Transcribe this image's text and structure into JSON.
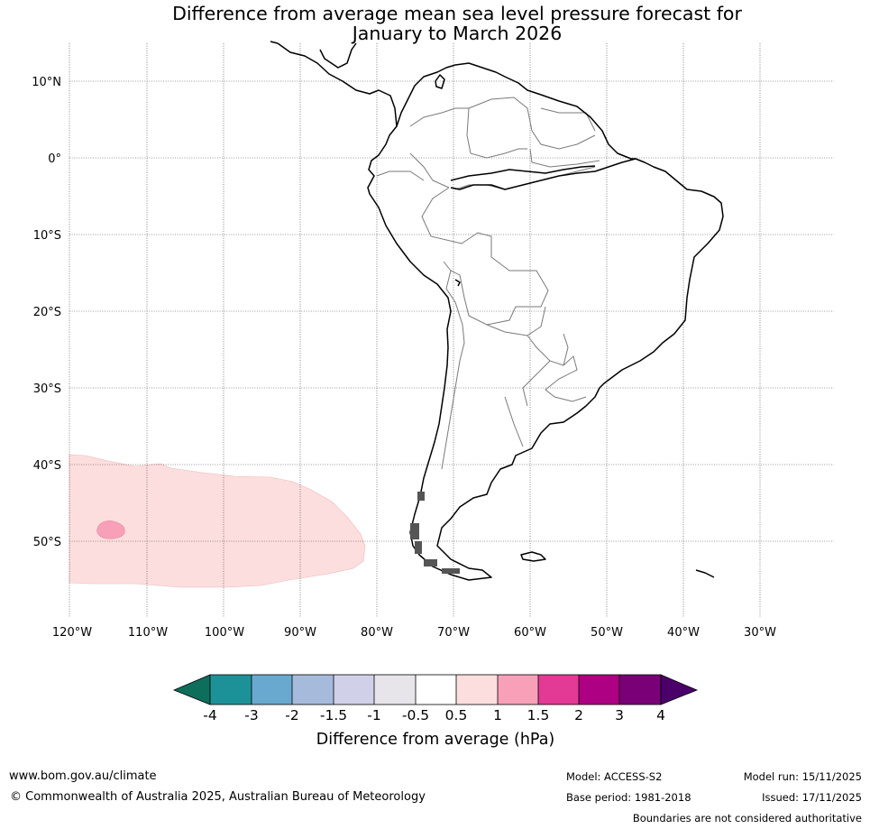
{
  "title": {
    "line1": "Difference from average mean sea level pressure forecast for",
    "line2": "January to March 2026"
  },
  "map": {
    "lat_labels": [
      "10°N",
      "0°",
      "10°S",
      "20°S",
      "30°S",
      "40°S",
      "50°S"
    ],
    "lon_labels": [
      "120°W",
      "110°W",
      "100°W",
      "90°W",
      "80°W",
      "70°W",
      "60°W",
      "50°W",
      "40°W",
      "30°W"
    ],
    "anomaly_regions": [
      {
        "category": "0.5 to 1 hPa",
        "color": "#fddede",
        "location": "southeast Pacific"
      },
      {
        "category": "1 to 1.5 hPa",
        "color": "#f8a0b8",
        "location": "southeast Pacific"
      }
    ]
  },
  "legend": {
    "ticks": [
      "-4",
      "-3",
      "-2",
      "-1.5",
      "-1",
      "-0.5",
      "0.5",
      "1",
      "1.5",
      "2",
      "3",
      "4"
    ],
    "colors": [
      "#0d6e5c",
      "#1d9198",
      "#6aa9cf",
      "#a6bbdc",
      "#d0d0e8",
      "#e7e5ea",
      "#ffffff",
      "#fddede",
      "#f8a0b8",
      "#e33a96",
      "#ae0082",
      "#7a0077",
      "#4a0068"
    ],
    "title": "Difference from average (hPa)"
  },
  "footer": {
    "url": "www.bom.gov.au/climate",
    "copyright": "© Commonwealth of Australia 2025, Australian Bureau of Meteorology",
    "model": "Model: ACCESS-S2",
    "base_period": "Base period: 1981-2018",
    "model_run": "Model run: 15/11/2025",
    "issued": "Issued: 17/11/2025",
    "boundaries_note": "Boundaries are not considered authoritative"
  }
}
